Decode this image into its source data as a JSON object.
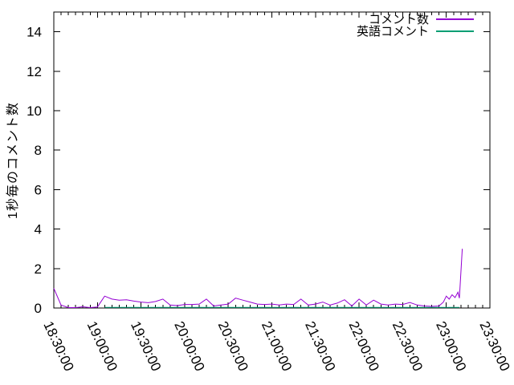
{
  "chart_data": {
    "type": "line",
    "title": "",
    "xlabel": "",
    "ylabel": "1秒毎のコメント数",
    "xlim": [
      "18:30:00",
      "23:30:00"
    ],
    "ylim": [
      0,
      15
    ],
    "y_ticks": [
      0,
      2,
      4,
      6,
      8,
      10,
      12,
      14
    ],
    "x_major_ticks": [
      "18:30:00",
      "19:00:00",
      "19:30:00",
      "20:00:00",
      "20:30:00",
      "21:00:00",
      "21:30:00",
      "22:00:00",
      "22:30:00",
      "23:00:00",
      "23:30:00"
    ],
    "x_minor_interval_minutes": 5,
    "grid": false,
    "legend_position": "top-right-inside",
    "axis_color": "#000000",
    "series": [
      {
        "name": "コメント数",
        "color": "#9400d3",
        "points": [
          [
            "18:30:00",
            1.0
          ],
          [
            "18:35:00",
            0.15
          ],
          [
            "18:40:00",
            0.02
          ],
          [
            "18:45:00",
            0.02
          ],
          [
            "18:50:00",
            0.06
          ],
          [
            "18:55:00",
            0.02
          ],
          [
            "19:00:00",
            0.05
          ],
          [
            "19:05:00",
            0.6
          ],
          [
            "19:10:00",
            0.45
          ],
          [
            "19:15:00",
            0.4
          ],
          [
            "19:20:00",
            0.42
          ],
          [
            "19:25:00",
            0.35
          ],
          [
            "19:30:00",
            0.3
          ],
          [
            "19:35:00",
            0.27
          ],
          [
            "19:40:00",
            0.33
          ],
          [
            "19:45:00",
            0.45
          ],
          [
            "19:50:00",
            0.15
          ],
          [
            "19:55:00",
            0.12
          ],
          [
            "20:00:00",
            0.18
          ],
          [
            "20:05:00",
            0.18
          ],
          [
            "20:10:00",
            0.2
          ],
          [
            "20:15:00",
            0.45
          ],
          [
            "20:20:00",
            0.1
          ],
          [
            "20:25:00",
            0.15
          ],
          [
            "20:30:00",
            0.2
          ],
          [
            "20:35:00",
            0.5
          ],
          [
            "20:40:00",
            0.4
          ],
          [
            "20:45:00",
            0.3
          ],
          [
            "20:50:00",
            0.2
          ],
          [
            "20:55:00",
            0.18
          ],
          [
            "21:00:00",
            0.2
          ],
          [
            "21:05:00",
            0.15
          ],
          [
            "21:10:00",
            0.2
          ],
          [
            "21:15:00",
            0.18
          ],
          [
            "21:20:00",
            0.45
          ],
          [
            "21:25:00",
            0.15
          ],
          [
            "21:30:00",
            0.2
          ],
          [
            "21:35:00",
            0.3
          ],
          [
            "21:40:00",
            0.15
          ],
          [
            "21:45:00",
            0.25
          ],
          [
            "21:50:00",
            0.42
          ],
          [
            "21:55:00",
            0.1
          ],
          [
            "22:00:00",
            0.45
          ],
          [
            "22:05:00",
            0.15
          ],
          [
            "22:10:00",
            0.4
          ],
          [
            "22:15:00",
            0.2
          ],
          [
            "22:20:00",
            0.15
          ],
          [
            "22:25:00",
            0.2
          ],
          [
            "22:30:00",
            0.18
          ],
          [
            "22:35:00",
            0.28
          ],
          [
            "22:40:00",
            0.15
          ],
          [
            "22:45:00",
            0.1
          ],
          [
            "22:50:00",
            0.08
          ],
          [
            "22:55:00",
            0.1
          ],
          [
            "22:58:00",
            0.3
          ],
          [
            "23:00:00",
            0.6
          ],
          [
            "23:02:00",
            0.45
          ],
          [
            "23:04:00",
            0.67
          ],
          [
            "23:06:00",
            0.53
          ],
          [
            "23:08:00",
            0.8
          ],
          [
            "23:09:00",
            0.5
          ],
          [
            "23:11:00",
            3.0
          ]
        ]
      },
      {
        "name": "英語コメント",
        "color": "#009e73",
        "points": [
          [
            "19:05:00",
            0.03
          ],
          [
            "20:00:00",
            0.03
          ],
          [
            "21:00:00",
            0.03
          ],
          [
            "22:00:00",
            0.03
          ],
          [
            "23:09:00",
            0.03
          ]
        ]
      }
    ]
  }
}
